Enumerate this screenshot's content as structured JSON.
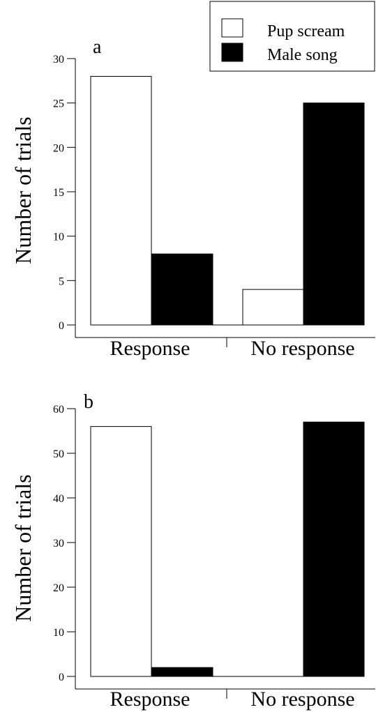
{
  "legend": {
    "placement": "top-right",
    "items": [
      {
        "label": "Pup scream",
        "color": "#ffffff"
      },
      {
        "label": "Male song",
        "color": "#000000"
      }
    ]
  },
  "chart_data": [
    {
      "type": "bar",
      "panel_label": "a",
      "categories": [
        "Response",
        "No response"
      ],
      "series": [
        {
          "name": "Pup scream",
          "color": "#ffffff",
          "values": [
            28,
            4
          ]
        },
        {
          "name": "Male song",
          "color": "#000000",
          "values": [
            8,
            25
          ]
        }
      ],
      "ylabel": "Number of trials",
      "ylim": [
        0,
        30
      ],
      "yticks": [
        0,
        5,
        10,
        15,
        20,
        25,
        30
      ],
      "grid": false
    },
    {
      "type": "bar",
      "panel_label": "b",
      "categories": [
        "Response",
        "No response"
      ],
      "series": [
        {
          "name": "Pup scream",
          "color": "#ffffff",
          "values": [
            56,
            0
          ]
        },
        {
          "name": "Male song",
          "color": "#000000",
          "values": [
            2,
            57
          ]
        }
      ],
      "ylabel": "Number of trials",
      "ylim": [
        0,
        60
      ],
      "yticks": [
        0,
        10,
        20,
        30,
        40,
        50,
        60
      ],
      "grid": false
    }
  ]
}
